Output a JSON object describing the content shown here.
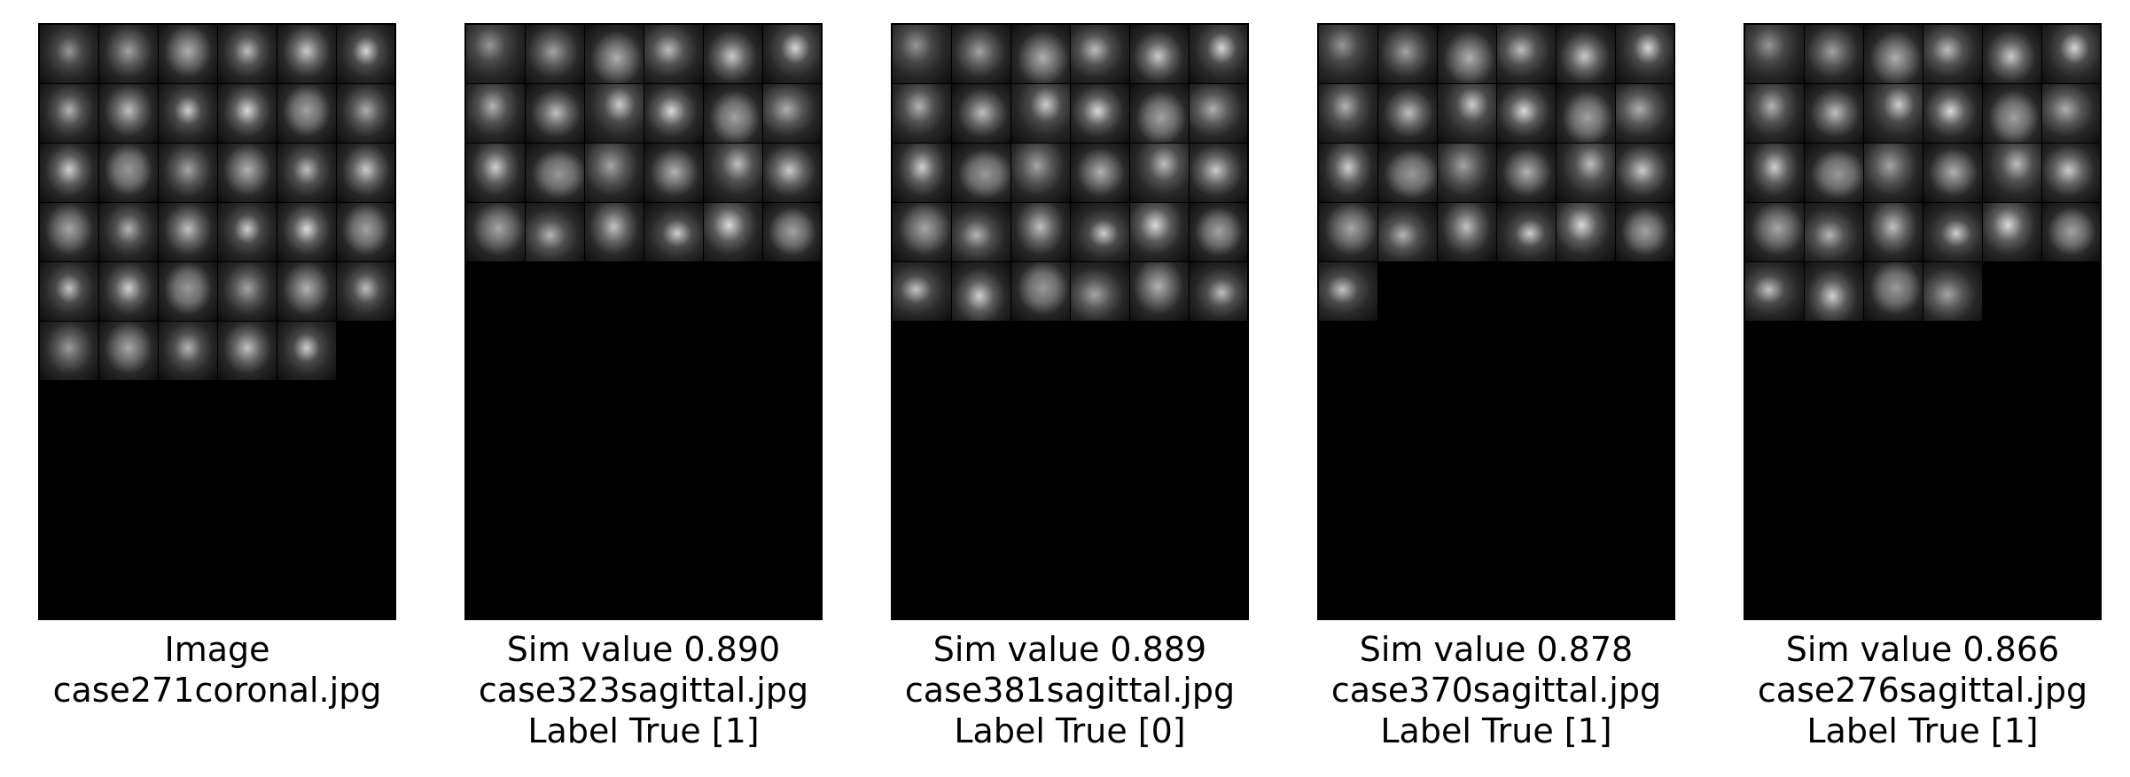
{
  "panels": [
    {
      "lines": [
        "Image",
        "case271coronal.jpg"
      ],
      "view": "coronal",
      "tile_counts": [
        6,
        6,
        6,
        6,
        6,
        5
      ]
    },
    {
      "lines": [
        "Sim value 0.890",
        "case323sagittal.jpg",
        "Label True [1]"
      ],
      "view": "sagittal",
      "tile_counts": [
        6,
        6,
        6,
        6
      ]
    },
    {
      "lines": [
        "Sim value 0.889",
        "case381sagittal.jpg",
        "Label True [0]"
      ],
      "view": "sagittal",
      "tile_counts": [
        6,
        6,
        6,
        6,
        6
      ]
    },
    {
      "lines": [
        "Sim value 0.878",
        "case370sagittal.jpg",
        "Label True [1]"
      ],
      "view": "sagittal",
      "tile_counts": [
        6,
        6,
        6,
        6,
        1
      ]
    },
    {
      "lines": [
        "Sim value 0.866",
        "case276sagittal.jpg",
        "Label True [1]"
      ],
      "view": "sagittal",
      "tile_counts": [
        6,
        6,
        6,
        6,
        4
      ]
    }
  ]
}
